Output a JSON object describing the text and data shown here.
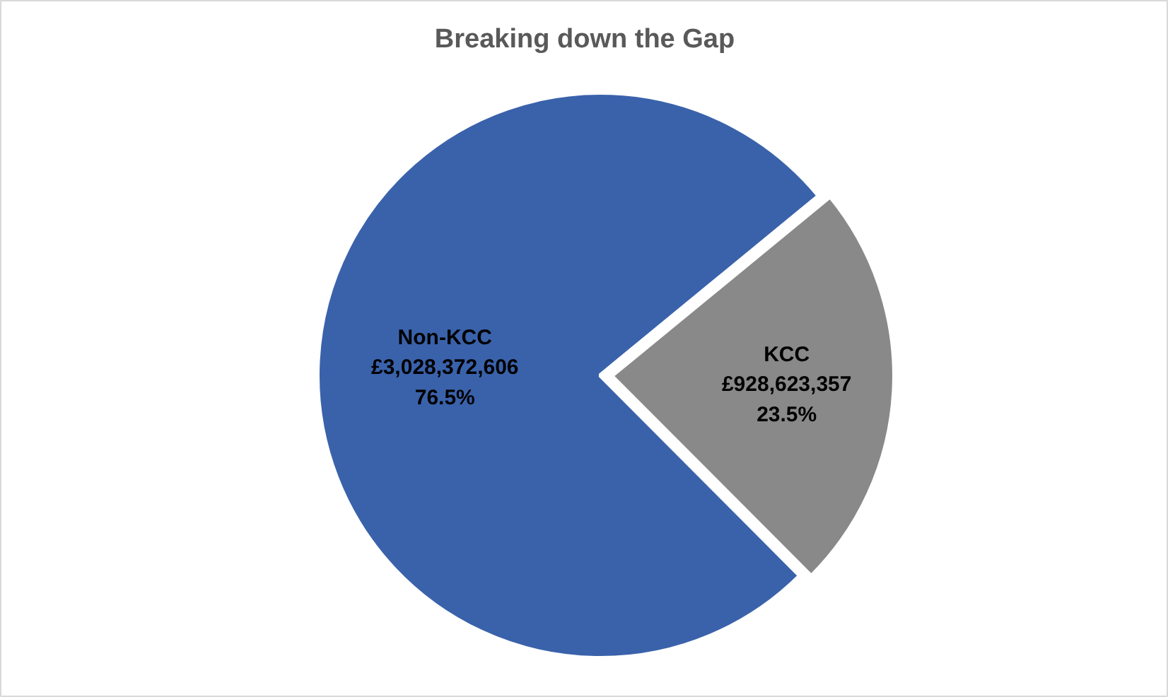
{
  "chart_data": {
    "type": "pie",
    "title": "Breaking down the Gap",
    "categories": [
      "KCC",
      "Non-KCC"
    ],
    "values": [
      928623357,
      3028372606
    ],
    "colors": [
      "#898989",
      "#3a62ab"
    ],
    "value_labels": [
      "£928,623,357\n23.5%",
      "£3,028,372,606\n76.5%"
    ]
  }
}
